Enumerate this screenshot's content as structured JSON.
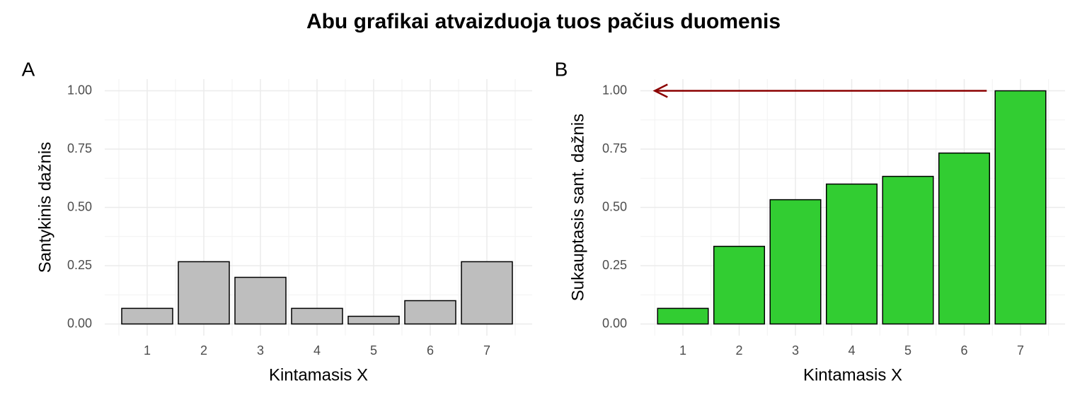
{
  "title": "Abu grafikai atvaizduoja tuos pačius duomenis",
  "chart_data": [
    {
      "type": "bar",
      "tag": "A",
      "x_label": "Kintamasis X",
      "y_label": "Santykinis dažnis",
      "categories": [
        "1",
        "2",
        "3",
        "4",
        "5",
        "6",
        "7"
      ],
      "values": [
        0.067,
        0.267,
        0.2,
        0.067,
        0.033,
        0.1,
        0.267
      ],
      "color": "#bebebe",
      "ylim": [
        -0.05,
        1.05
      ],
      "yticks": [
        {
          "value": 0,
          "label": "0.00"
        },
        {
          "value": 0.25,
          "label": "0.25"
        },
        {
          "value": 0.5,
          "label": "0.50"
        },
        {
          "value": 0.75,
          "label": "0.75"
        },
        {
          "value": 1,
          "label": "1.00"
        }
      ],
      "grid": true
    },
    {
      "type": "bar",
      "tag": "B",
      "x_label": "Kintamasis X",
      "y_label": "Sukauptasis sant. dažnis",
      "categories": [
        "1",
        "2",
        "3",
        "4",
        "5",
        "6",
        "7"
      ],
      "values": [
        0.067,
        0.333,
        0.533,
        0.6,
        0.633,
        0.733,
        1
      ],
      "color": "#32cd32",
      "ylim": [
        -0.05,
        1.05
      ],
      "yticks": [
        {
          "value": 0,
          "label": "0.00"
        },
        {
          "value": 0.25,
          "label": "0.25"
        },
        {
          "value": 0.5,
          "label": "0.50"
        },
        {
          "value": 0.75,
          "label": "0.75"
        },
        {
          "value": 1,
          "label": "1.00"
        }
      ],
      "grid": true,
      "arrow_color": "#8b0000"
    }
  ]
}
